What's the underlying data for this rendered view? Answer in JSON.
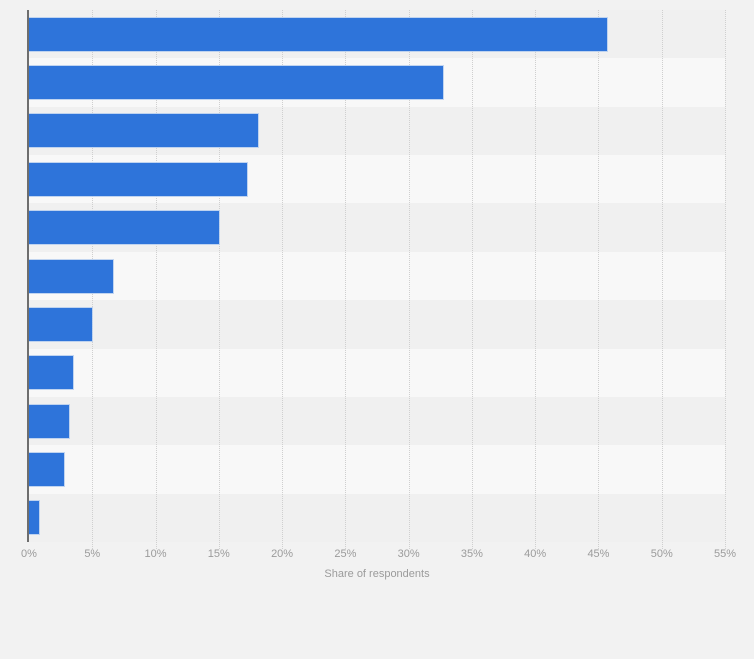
{
  "page": {
    "background_color": "#f2f2f2"
  },
  "chart_data": {
    "type": "bar",
    "orientation": "horizontal",
    "title": "",
    "xlabel": "Share of respondents",
    "ylabel": "",
    "xlim": [
      0,
      55
    ],
    "x_tick_labels": [
      "0%",
      "5%",
      "10%",
      "15%",
      "20%",
      "25%",
      "30%",
      "35%",
      "40%",
      "45%",
      "50%",
      "55%"
    ],
    "x_tick_values": [
      0,
      5,
      10,
      15,
      20,
      25,
      30,
      35,
      40,
      45,
      50,
      55
    ],
    "values": [
      45.7,
      32.7,
      18.1,
      17.2,
      15.0,
      6.6,
      5.0,
      3.5,
      3.2,
      2.8,
      0.8
    ],
    "category_labels_visible": false,
    "grid": "vertical-dotted",
    "legend": "none",
    "colors": {
      "bar_fill": "#2e74da",
      "bar_outline": "#b9cfee",
      "row_stripe_odd": "#f0f0f0",
      "row_stripe_even": "#f8f8f8",
      "gridline": "#cfcfcf",
      "axis_line": "#6e6e6e",
      "tick_label": "#9b9b9b"
    }
  }
}
